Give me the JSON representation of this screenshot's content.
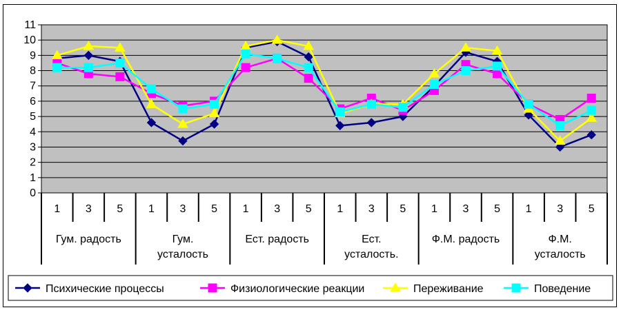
{
  "chart_data": {
    "type": "line",
    "title": "",
    "xlabel": "",
    "ylabel": "",
    "ylim": [
      0,
      11
    ],
    "y_ticks": [
      "0",
      "1",
      "2",
      "3",
      "4",
      "5",
      "6",
      "7",
      "8",
      "9",
      "10",
      "11"
    ],
    "grid": true,
    "legend_position": "bottom",
    "categories": [
      "1",
      "3",
      "5",
      "1",
      "3",
      "5",
      "1",
      "3",
      "5",
      "1",
      "3",
      "5",
      "1",
      "3",
      "5",
      "1",
      "3",
      "5"
    ],
    "groups": [
      {
        "lines": [
          "Гум.  радость"
        ]
      },
      {
        "lines": [
          "Гум.",
          "усталость"
        ]
      },
      {
        "lines": [
          "Ест. радость"
        ]
      },
      {
        "lines": [
          "Ест.",
          "усталость."
        ]
      },
      {
        "lines": [
          "Ф.М.  радость"
        ]
      },
      {
        "lines": [
          "Ф.М.",
          "усталость"
        ]
      }
    ],
    "series": [
      {
        "name": "Психические процессы",
        "color": "#000080",
        "marker": "diamond",
        "values": [
          8.8,
          9.0,
          8.6,
          4.6,
          3.4,
          4.5,
          9.5,
          9.9,
          8.9,
          4.4,
          4.6,
          5.0,
          7.0,
          9.2,
          8.6,
          5.1,
          3.0,
          3.8
        ]
      },
      {
        "name": "Физиологические реакции",
        "color": "#FF00FF",
        "marker": "square",
        "values": [
          8.5,
          7.8,
          7.6,
          6.5,
          5.7,
          6.0,
          8.2,
          8.8,
          7.5,
          5.5,
          6.2,
          5.4,
          6.7,
          8.4,
          7.8,
          5.8,
          4.8,
          6.2
        ]
      },
      {
        "name": "Переживание",
        "color": "#FFFF00",
        "marker": "triangle",
        "values": [
          9.0,
          9.6,
          9.5,
          5.8,
          4.5,
          5.2,
          9.6,
          10.0,
          9.6,
          5.2,
          5.8,
          5.8,
          7.8,
          9.5,
          9.3,
          5.5,
          3.4,
          4.9
        ]
      },
      {
        "name": "Поведение",
        "color": "#00FFFF",
        "marker": "square",
        "values": [
          8.2,
          8.2,
          8.5,
          6.8,
          5.5,
          5.8,
          9.1,
          8.8,
          8.2,
          5.3,
          5.8,
          5.6,
          7.1,
          8.0,
          8.3,
          5.8,
          4.4,
          5.4
        ]
      }
    ],
    "colors": {
      "plot_background": "#C0C0C0",
      "border": "#000000",
      "gridline": "#000000"
    }
  }
}
